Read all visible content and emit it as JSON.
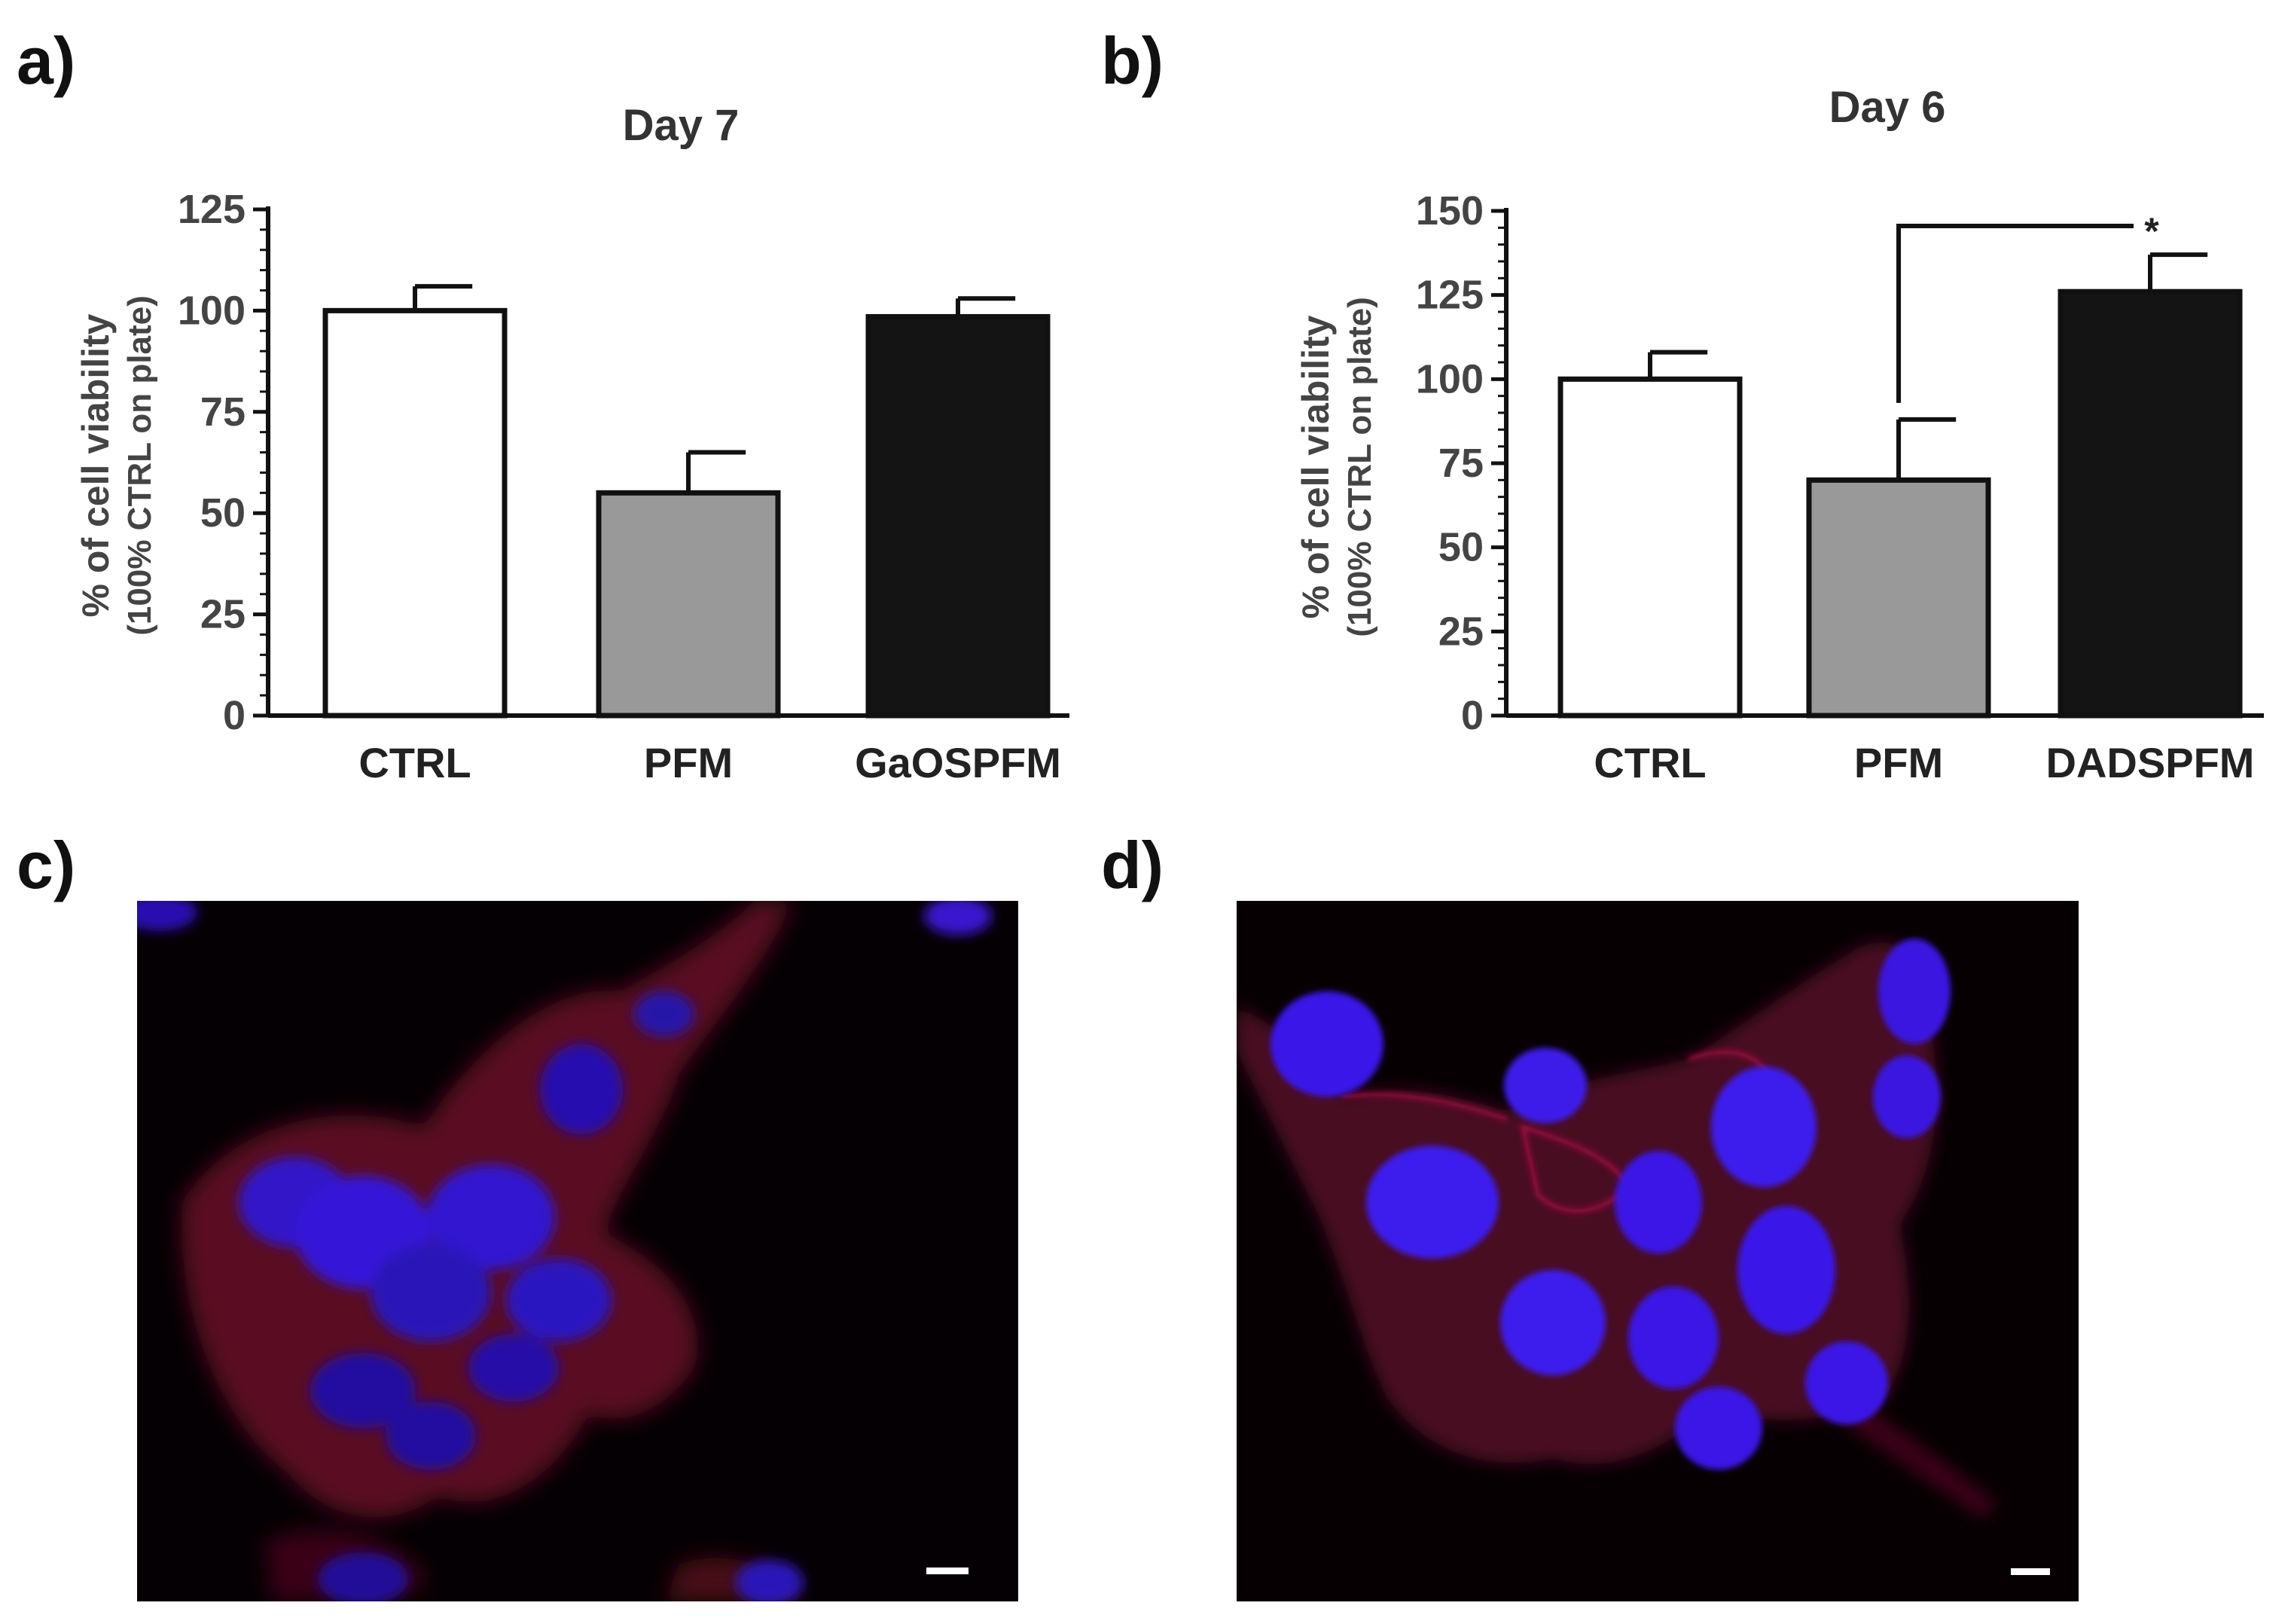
{
  "panels": {
    "a": {
      "letter": "a)"
    },
    "b": {
      "letter": "b)"
    },
    "c": {
      "letter": "c)"
    },
    "d": {
      "letter": "d)"
    }
  },
  "colors": {
    "ctrl_fill": "#ffffff",
    "pfm_fill": "#999999",
    "treated_fill": "#141414",
    "bar_stroke": "#111111",
    "text": "#444444",
    "nucleus_blue": "#3a14e6",
    "membrane_red": "#c0103a"
  },
  "chart_data": [
    {
      "panel": "a",
      "type": "bar",
      "title": "Day 7",
      "ylabel_line1": "% of cell viability",
      "ylabel_line2": "(100% CTRL on plate)",
      "xlabel": "",
      "ylim": [
        0,
        125
      ],
      "yticks": [
        0,
        25,
        50,
        75,
        100,
        125
      ],
      "categories": [
        "CTRL",
        "PFM",
        "GaOSPFM"
      ],
      "values": [
        100,
        55,
        98.5
      ],
      "errors": [
        6,
        10,
        4.5
      ],
      "fills": [
        "#ffffff",
        "#999999",
        "#141414"
      ],
      "significance": null
    },
    {
      "panel": "b",
      "type": "bar",
      "title": "Day 6",
      "ylabel_line1": "% of cell viability",
      "ylabel_line2": "(100% CTRL on plate)",
      "xlabel": "",
      "ylim": [
        0,
        150
      ],
      "yticks": [
        0,
        25,
        50,
        75,
        100,
        125,
        150
      ],
      "categories": [
        "CTRL",
        "PFM",
        "DADSPFM"
      ],
      "values": [
        100,
        70,
        126
      ],
      "errors": [
        8,
        18,
        11
      ],
      "fills": [
        "#ffffff",
        "#999999",
        "#141414"
      ],
      "significance": {
        "from": 1,
        "to": 2,
        "symbol": "*"
      }
    }
  ]
}
